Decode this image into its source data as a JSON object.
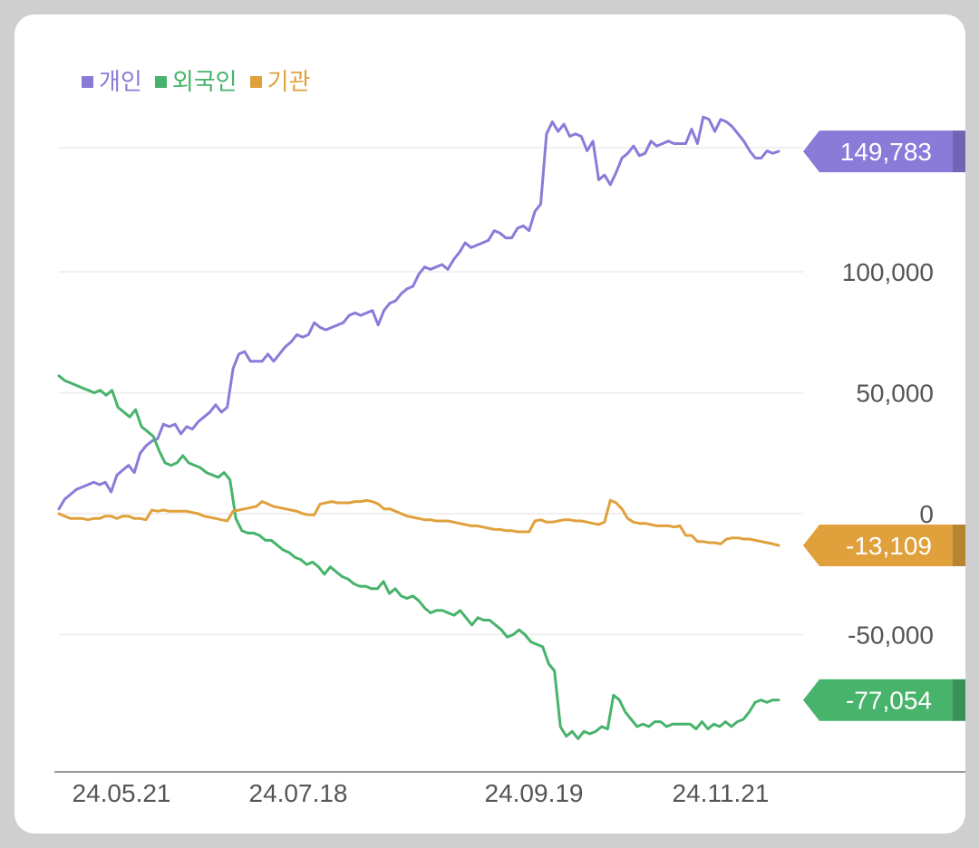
{
  "chart_data": {
    "type": "line",
    "legend_position": "top-left",
    "grid": true,
    "x_ticks": [
      "24.05.21",
      "24.07.18",
      "24.09.19",
      "24.11.21"
    ],
    "y_ticks": [
      100000,
      50000,
      0,
      -50000
    ],
    "y_tick_labels": [
      "100,000",
      "50,000",
      "0",
      "-50,000"
    ],
    "ylim": [
      -102000,
      152000
    ],
    "series": [
      {
        "name": "개인",
        "color": "#8a7bd9",
        "badge_color": "#8a7bd9",
        "last_label": "149,783",
        "values": [
          2000,
          6000,
          8000,
          10000,
          11000,
          12000,
          13000,
          12000,
          13000,
          9000,
          16000,
          18000,
          20000,
          17000,
          25000,
          28000,
          30000,
          31000,
          37000,
          36000,
          37000,
          33000,
          36000,
          35000,
          38000,
          40000,
          42000,
          45000,
          42000,
          44000,
          60000,
          66000,
          67000,
          63000,
          63000,
          63000,
          66000,
          63000,
          66000,
          69000,
          71000,
          74000,
          73000,
          74000,
          79000,
          77000,
          76000,
          77000,
          78000,
          79000,
          82000,
          83000,
          82000,
          83000,
          84000,
          78000,
          84000,
          87000,
          88000,
          91000,
          93000,
          94000,
          99000,
          102000,
          101000,
          102000,
          103000,
          101000,
          105000,
          108000,
          112000,
          110000,
          111000,
          112000,
          113000,
          117000,
          116000,
          114000,
          114000,
          118000,
          119000,
          117000,
          125000,
          128000,
          157000,
          162000,
          158000,
          161000,
          156000,
          157000,
          156000,
          150000,
          154000,
          138000,
          140000,
          136000,
          141000,
          147000,
          149000,
          152000,
          148000,
          149000,
          154000,
          152000,
          153000,
          154000,
          153000,
          153000,
          153000,
          159000,
          153000,
          164000,
          163000,
          158000,
          163000,
          162000,
          160000,
          157000,
          154000,
          150000,
          147000,
          147000,
          150000,
          149000,
          149783
        ]
      },
      {
        "name": "외국인",
        "color": "#47b36b",
        "badge_color": "#47b36b",
        "last_label": "-77,054",
        "values": [
          57000,
          55000,
          54000,
          53000,
          52000,
          51000,
          50000,
          51000,
          49000,
          51000,
          44000,
          42000,
          40000,
          43000,
          36000,
          34000,
          32000,
          26000,
          21000,
          20000,
          21000,
          24000,
          21000,
          20000,
          19000,
          17000,
          16000,
          15000,
          17000,
          14000,
          -2000,
          -7000,
          -8000,
          -8000,
          -9000,
          -11000,
          -11000,
          -13000,
          -15000,
          -16000,
          -18000,
          -19000,
          -21000,
          -20000,
          -22000,
          -25000,
          -22000,
          -24000,
          -26000,
          -27000,
          -29000,
          -30000,
          -30000,
          -31000,
          -31000,
          -28000,
          -33000,
          -31000,
          -34000,
          -35000,
          -34000,
          -36000,
          -39000,
          -41000,
          -40000,
          -40000,
          -41000,
          -42000,
          -40000,
          -43000,
          -46000,
          -43000,
          -44000,
          -44000,
          -46000,
          -48000,
          -51000,
          -50000,
          -48000,
          -50000,
          -53000,
          -54000,
          -55000,
          -62000,
          -65000,
          -88000,
          -92000,
          -90000,
          -93000,
          -90000,
          -91000,
          -90000,
          -88000,
          -89000,
          -75000,
          -77000,
          -82000,
          -85000,
          -88000,
          -87000,
          -88000,
          -86000,
          -86000,
          -88000,
          -87000,
          -87000,
          -87000,
          -87000,
          -89000,
          -86000,
          -89000,
          -87000,
          -88000,
          -86000,
          -88000,
          -86000,
          -85000,
          -82000,
          -78000,
          -77000,
          -78000,
          -77000,
          -77054
        ]
      },
      {
        "name": "기관",
        "color": "#e0a13c",
        "badge_color": "#e0a13c",
        "last_label": "-13,109",
        "values": [
          0,
          -1000,
          -2000,
          -2000,
          -2000,
          -2500,
          -2000,
          -2000,
          -1000,
          -1000,
          -2000,
          -1000,
          -1000,
          -2000,
          -2000,
          -2500,
          1500,
          1000,
          1500,
          1000,
          1000,
          1000,
          1000,
          500,
          0,
          -1000,
          -1500,
          -2000,
          -2500,
          -3000,
          1000,
          1500,
          2000,
          2500,
          3000,
          5000,
          4000,
          3000,
          2500,
          2000,
          1500,
          1000,
          0,
          -500,
          -500,
          4000,
          4500,
          5000,
          4500,
          4500,
          4500,
          5000,
          5000,
          5500,
          5000,
          4000,
          2000,
          2000,
          1000,
          0,
          -1000,
          -1500,
          -2000,
          -2500,
          -2500,
          -3000,
          -3000,
          -3000,
          -3500,
          -4000,
          -4500,
          -5000,
          -5000,
          -5500,
          -6000,
          -6500,
          -6500,
          -7000,
          -7000,
          -7500,
          -7500,
          -7500,
          -3000,
          -2500,
          -3500,
          -3500,
          -3000,
          -2500,
          -2500,
          -3000,
          -3000,
          -3500,
          -4000,
          -4500,
          -3500,
          5500,
          4500,
          2000,
          -2000,
          -3500,
          -4000,
          -4000,
          -4500,
          -5000,
          -5000,
          -5000,
          -5500,
          -5000,
          -9000,
          -9000,
          -11500,
          -11500,
          -12000,
          -12000,
          -12500,
          -10500,
          -10000,
          -10000,
          -10500,
          -10500,
          -11000,
          -11500,
          -12000,
          -12500,
          -13109
        ]
      }
    ]
  }
}
